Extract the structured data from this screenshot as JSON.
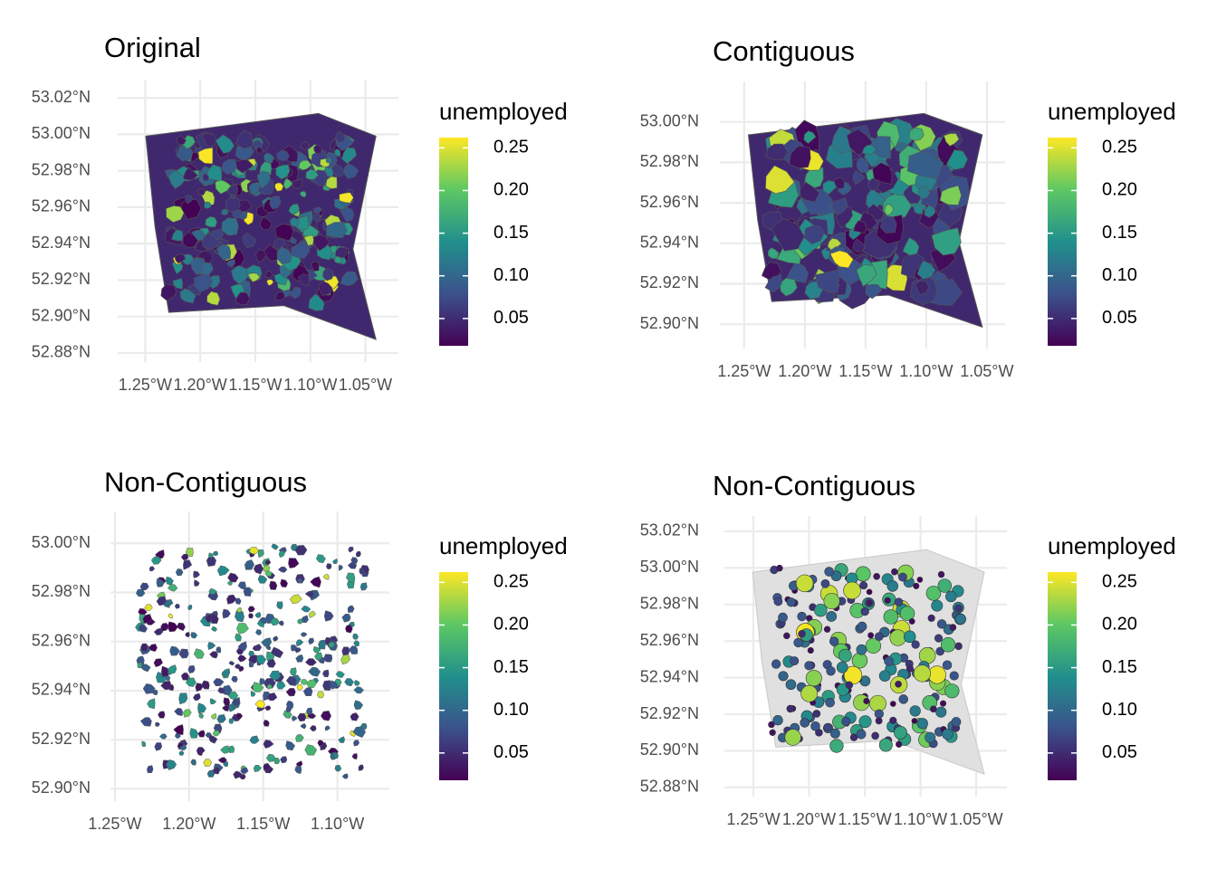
{
  "panels": [
    {
      "title": "Original",
      "kind": "choropleth",
      "xlim": [
        -1.275,
        -1.02
      ],
      "ylim": [
        52.875,
        53.03
      ],
      "xticks": [
        {
          "value": -1.25,
          "label": "1.25°W"
        },
        {
          "value": -1.2,
          "label": "1.20°W"
        },
        {
          "value": -1.15,
          "label": "1.15°W"
        },
        {
          "value": -1.1,
          "label": "1.10°W"
        },
        {
          "value": -1.05,
          "label": "1.05°W"
        }
      ],
      "yticks": [
        {
          "value": 52.88,
          "label": "52.88°N"
        },
        {
          "value": 52.9,
          "label": "52.90°N"
        },
        {
          "value": 52.92,
          "label": "52.92°N"
        },
        {
          "value": 52.94,
          "label": "52.94°N"
        },
        {
          "value": 52.96,
          "label": "52.96°N"
        },
        {
          "value": 52.98,
          "label": "52.98°N"
        },
        {
          "value": 53.0,
          "label": "53.00°N"
        },
        {
          "value": 53.02,
          "label": "53.02°N"
        }
      ]
    },
    {
      "title": "Contiguous",
      "kind": "cartogram",
      "xlim": [
        -1.27,
        -1.035
      ],
      "ylim": [
        52.888,
        53.02
      ],
      "xticks": [
        {
          "value": -1.25,
          "label": "1.25°W"
        },
        {
          "value": -1.2,
          "label": "1.20°W"
        },
        {
          "value": -1.15,
          "label": "1.15°W"
        },
        {
          "value": -1.1,
          "label": "1.10°W"
        },
        {
          "value": -1.05,
          "label": "1.05°W"
        }
      ],
      "yticks": [
        {
          "value": 52.9,
          "label": "52.90°N"
        },
        {
          "value": 52.92,
          "label": "52.92°N"
        },
        {
          "value": 52.94,
          "label": "52.94°N"
        },
        {
          "value": 52.96,
          "label": "52.96°N"
        },
        {
          "value": 52.98,
          "label": "52.98°N"
        },
        {
          "value": 53.0,
          "label": "53.00°N"
        }
      ]
    },
    {
      "title": "Non-Contiguous",
      "kind": "scattered",
      "xlim": [
        -1.253,
        -1.065
      ],
      "ylim": [
        52.895,
        53.013
      ],
      "xticks": [
        {
          "value": -1.25,
          "label": "1.25°W"
        },
        {
          "value": -1.2,
          "label": "1.20°W"
        },
        {
          "value": -1.15,
          "label": "1.15°W"
        },
        {
          "value": -1.1,
          "label": "1.10°W"
        }
      ],
      "yticks": [
        {
          "value": 52.9,
          "label": "52.90°N"
        },
        {
          "value": 52.92,
          "label": "52.92°N"
        },
        {
          "value": 52.94,
          "label": "52.94°N"
        },
        {
          "value": 52.96,
          "label": "52.96°N"
        },
        {
          "value": 52.98,
          "label": "52.98°N"
        },
        {
          "value": 53.0,
          "label": "53.00°N"
        }
      ]
    },
    {
      "title": "Non-Contiguous",
      "kind": "dorling",
      "xlim": [
        -1.276,
        -1.0224
      ],
      "ylim": [
        52.875,
        53.0284
      ],
      "xticks": [
        {
          "value": -1.25,
          "label": "1.25°W"
        },
        {
          "value": -1.2,
          "label": "1.20°W"
        },
        {
          "value": -1.15,
          "label": "1.15°W"
        },
        {
          "value": -1.1,
          "label": "1.10°W"
        },
        {
          "value": -1.05,
          "label": "1.05°W"
        }
      ],
      "yticks": [
        {
          "value": 52.88,
          "label": "52.88°N"
        },
        {
          "value": 52.9,
          "label": "52.90°N"
        },
        {
          "value": 52.92,
          "label": "52.92°N"
        },
        {
          "value": 52.94,
          "label": "52.94°N"
        },
        {
          "value": 52.96,
          "label": "52.96°N"
        },
        {
          "value": 52.98,
          "label": "52.98°N"
        },
        {
          "value": 53.0,
          "label": "53.00°N"
        },
        {
          "value": 53.02,
          "label": "53.02°N"
        }
      ]
    }
  ],
  "legend": {
    "title": "unemployed",
    "lim": [
      0.018,
      0.262
    ],
    "ticks": [
      0.05,
      {
        "value": 0.1,
        "label": "0.10"
      },
      0.15,
      {
        "value": 0.2,
        "label": "0.20"
      },
      0.25
    ],
    "colors": [
      "#440154",
      "#3b528b",
      "#21908c",
      "#5dc863",
      "#fde725"
    ]
  }
}
